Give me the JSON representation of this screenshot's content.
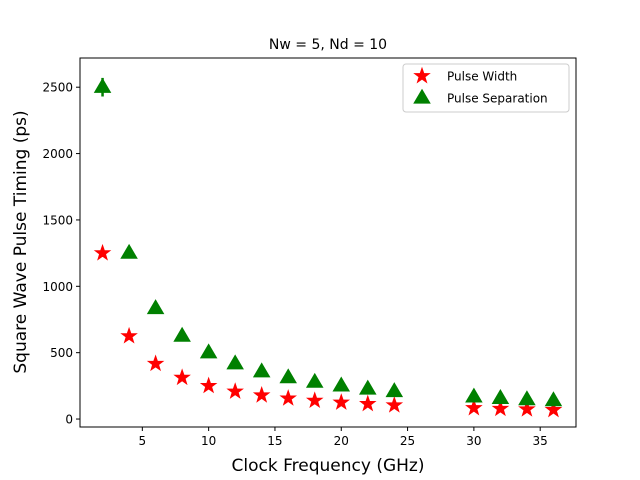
{
  "chart_data": {
    "type": "scatter",
    "title": "Nw = 5, Nd = 10",
    "xlabel": "Clock Frequency (GHz)",
    "ylabel": "Square Wave Pulse Timing (ps)",
    "xlim": [
      0.3,
      37.7
    ],
    "ylim": [
      -60,
      2720
    ],
    "xticks": [
      5,
      10,
      15,
      20,
      25,
      30,
      35
    ],
    "yticks": [
      0,
      500,
      1000,
      1500,
      2000,
      2500
    ],
    "grid": false,
    "legend_position": "top-right",
    "series": [
      {
        "name": "Pulse Width",
        "marker": "star",
        "color": "#ff0000",
        "x": [
          2,
          4,
          6,
          8,
          10,
          12,
          14,
          16,
          18,
          20,
          22,
          24,
          30,
          32,
          34,
          36
        ],
        "y": [
          1250,
          625,
          417,
          312,
          250,
          208,
          179,
          156,
          139,
          125,
          114,
          104,
          83,
          78,
          74,
          69
        ]
      },
      {
        "name": "Pulse Separation",
        "marker": "triangle",
        "color": "#008000",
        "x": [
          2,
          4,
          6,
          8,
          10,
          12,
          14,
          16,
          18,
          20,
          22,
          24,
          30,
          32,
          34,
          36
        ],
        "y": [
          2500,
          1250,
          833,
          625,
          500,
          417,
          357,
          312,
          278,
          250,
          227,
          208,
          167,
          156,
          147,
          139
        ],
        "error_at_first": 70
      }
    ]
  }
}
